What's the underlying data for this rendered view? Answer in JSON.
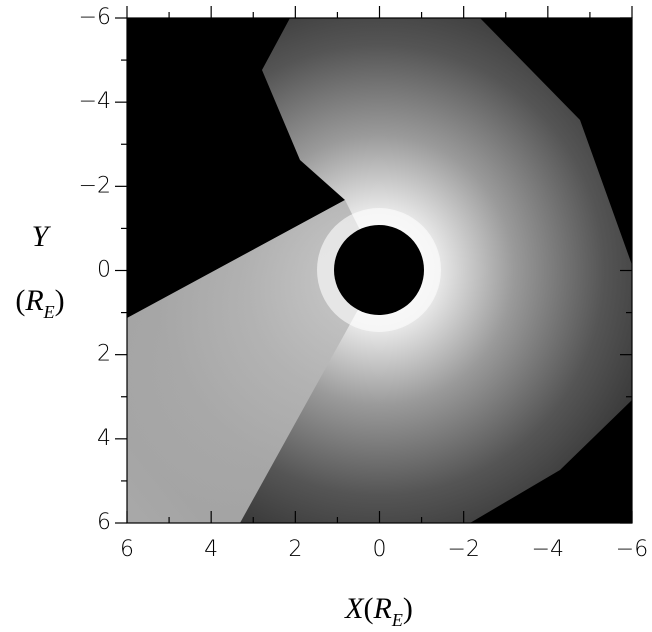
{
  "chart_data": {
    "type": "image",
    "xlabel": {
      "symbol": "X",
      "open": "(",
      "unit": "R",
      "unit_sub": "E",
      "close": ")"
    },
    "ylabel": {
      "symbol": "Y",
      "open": "(",
      "unit": "R",
      "unit_sub": "E",
      "close": ")"
    },
    "xlim": [
      6,
      -6
    ],
    "ylim": [
      -6,
      6
    ],
    "xticks": [
      6,
      4,
      2,
      0,
      {
        "value": -2,
        "label": "−2"
      },
      {
        "value": -4,
        "label": "−4"
      },
      {
        "value": -6,
        "label": "−6"
      }
    ],
    "yticks": [
      {
        "value": -6,
        "label": "−6"
      },
      {
        "value": -4,
        "label": "−4"
      },
      {
        "value": -2,
        "label": "−2"
      },
      0,
      2,
      4,
      6
    ]
  }
}
